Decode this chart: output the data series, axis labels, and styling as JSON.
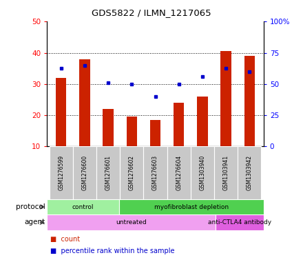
{
  "title": "GDS5822 / ILMN_1217065",
  "samples": [
    "GSM1276599",
    "GSM1276600",
    "GSM1276601",
    "GSM1276602",
    "GSM1276603",
    "GSM1276604",
    "GSM1303940",
    "GSM1303941",
    "GSM1303942"
  ],
  "counts": [
    32,
    38,
    22,
    19.5,
    18.5,
    24,
    26,
    40.5,
    39
  ],
  "percentiles": [
    35,
    36,
    30.5,
    30,
    26,
    30,
    32.5,
    35,
    34
  ],
  "ylim_left": [
    10,
    50
  ],
  "ylim_right": [
    0,
    100
  ],
  "yticks_left": [
    10,
    20,
    30,
    40,
    50
  ],
  "yticks_right": [
    0,
    25,
    50,
    75,
    100
  ],
  "ytick_labels_right": [
    "0",
    "25",
    "50",
    "75",
    "100%"
  ],
  "protocol_groups": [
    {
      "label": "control",
      "start": 0,
      "end": 3,
      "color": "#a0f0a0"
    },
    {
      "label": "myofibroblast depletion",
      "start": 3,
      "end": 9,
      "color": "#50d050"
    }
  ],
  "agent_groups": [
    {
      "label": "untreated",
      "start": 0,
      "end": 7,
      "color": "#f0a0f0"
    },
    {
      "label": "anti-CTLA4 antibody",
      "start": 7,
      "end": 9,
      "color": "#e060e0"
    }
  ],
  "bar_color": "#cc2200",
  "dot_color": "#0000cc",
  "label_row_color": "#c8c8c8",
  "label_row_border": "#ffffff",
  "protocol_label": "protocol",
  "agent_label": "agent",
  "legend_count": "count",
  "legend_percentile": "percentile rank within the sample",
  "fig_width": 4.4,
  "fig_height": 3.93,
  "dpi": 100
}
